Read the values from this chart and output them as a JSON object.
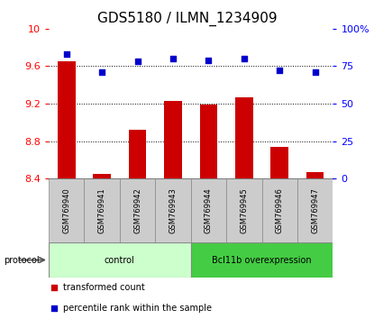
{
  "title": "GDS5180 / ILMN_1234909",
  "samples": [
    "GSM769940",
    "GSM769941",
    "GSM769942",
    "GSM769943",
    "GSM769944",
    "GSM769945",
    "GSM769946",
    "GSM769947"
  ],
  "transformed_count": [
    9.65,
    8.45,
    8.92,
    9.23,
    9.19,
    9.27,
    8.74,
    8.47
  ],
  "percentile_rank": [
    83,
    71,
    78,
    80,
    79,
    80,
    72,
    71
  ],
  "ylim_left": [
    8.4,
    10.0
  ],
  "ylim_right": [
    0,
    100
  ],
  "yticks_left": [
    8.4,
    8.8,
    9.2,
    9.6,
    10.0
  ],
  "yticks_right": [
    0,
    25,
    50,
    75,
    100
  ],
  "ytick_labels_left": [
    "8.4",
    "8.8",
    "9.2",
    "9.6",
    "10"
  ],
  "ytick_labels_right": [
    "0",
    "25",
    "50",
    "75",
    "100%"
  ],
  "control_label": "control",
  "overexpression_label": "Bcl11b overexpression",
  "protocol_label": "protocol",
  "bar_color": "#cc0000",
  "dot_color": "#0000cc",
  "control_bg": "#ccffcc",
  "overexpression_bg": "#44cc44",
  "sample_bg": "#cccccc",
  "legend_bar_label": "transformed count",
  "legend_dot_label": "percentile rank within the sample",
  "title_fontsize": 11,
  "tick_fontsize": 8,
  "label_fontsize": 7,
  "sample_fontsize": 6
}
